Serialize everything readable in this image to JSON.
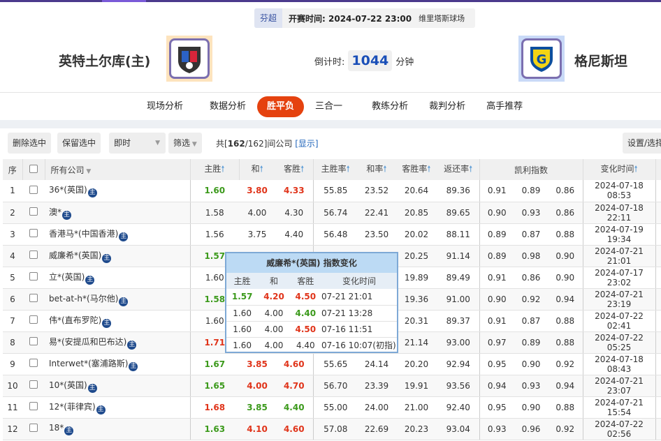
{
  "match": {
    "league": "芬超",
    "kickoff": "开赛时间: 2024-07-22 23:00",
    "venue": "维里塔斯球场",
    "home": "英特土尔库(主)",
    "away": "格尼斯坦",
    "countdown_label": "倒计时:",
    "countdown": "1044",
    "countdown_unit": "分钟"
  },
  "nav": [
    "现场分析",
    "数据分析",
    "胜平负",
    "三合一",
    "教练分析",
    "裁判分析",
    "高手推荐"
  ],
  "toolbar": {
    "delete": "删除选中",
    "keep": "保留选中",
    "mode": "即时",
    "filter": "筛选",
    "count_pre": "共[",
    "count_bold": "162",
    "count_post": "/162]间公司",
    "show": "[显示]",
    "settings": "设置/选择"
  },
  "headers": {
    "idx": "序",
    "company": "所有公司",
    "home": "主胜",
    "draw": "和",
    "away": "客胜",
    "hr": "主胜率",
    "dr": "和率",
    "ar": "客胜率",
    "ret": "返还率",
    "kelly": "凯利指数",
    "time": "变化时间"
  },
  "rows": [
    [
      "1",
      "36*(英国)",
      "1.60",
      "g",
      "3.80",
      "r",
      "4.33",
      "r",
      "55.85",
      "23.52",
      "20.64",
      "89.36",
      "0.91",
      "0.89",
      "0.86",
      "2024-07-18 08:53"
    ],
    [
      "2",
      "澳*",
      "1.58",
      "",
      "4.00",
      "",
      "4.30",
      "",
      "56.74",
      "22.41",
      "20.85",
      "89.65",
      "0.90",
      "0.93",
      "0.86",
      "2024-07-18 22:11"
    ],
    [
      "3",
      "香港马*(中国香港)",
      "1.56",
      "",
      "3.75",
      "",
      "4.40",
      "",
      "56.48",
      "23.50",
      "20.02",
      "88.11",
      "0.89",
      "0.87",
      "0.88",
      "2024-07-19 19:34"
    ],
    [
      "4",
      "威廉希*(英国)",
      "1.57",
      "g",
      "",
      "",
      "",
      "",
      "",
      "",
      "20.25",
      "91.14",
      "0.89",
      "0.98",
      "0.90",
      "2024-07-21 21:01"
    ],
    [
      "5",
      "立*(英国)",
      "1.60",
      "",
      "",
      "",
      "",
      "",
      "",
      "",
      "19.89",
      "89.49",
      "0.91",
      "0.86",
      "0.90",
      "2024-07-17 23:02"
    ],
    [
      "6",
      "bet-at-h*(马尔他)",
      "1.58",
      "g",
      "",
      "",
      "",
      "",
      "",
      "",
      "19.36",
      "91.00",
      "0.90",
      "0.92",
      "0.94",
      "2024-07-21 23:19"
    ],
    [
      "7",
      "伟*(直布罗陀)",
      "1.60",
      "",
      "",
      "",
      "",
      "",
      "",
      "",
      "20.31",
      "89.37",
      "0.91",
      "0.87",
      "0.88",
      "2024-07-22 02:41"
    ],
    [
      "8",
      "易*(安提瓜和巴布达)",
      "1.71",
      "r",
      "",
      "",
      "",
      "",
      "",
      "",
      "21.14",
      "93.00",
      "0.97",
      "0.89",
      "0.88",
      "2024-07-22 05:25"
    ],
    [
      "9",
      "Interwet*(塞浦路斯)",
      "1.67",
      "g",
      "3.85",
      "r",
      "4.60",
      "r",
      "55.65",
      "24.14",
      "20.20",
      "92.94",
      "0.95",
      "0.90",
      "0.92",
      "2024-07-18 08:43"
    ],
    [
      "10",
      "10*(英国)",
      "1.65",
      "g",
      "4.00",
      "r",
      "4.70",
      "r",
      "56.70",
      "23.39",
      "19.91",
      "93.56",
      "0.94",
      "0.93",
      "0.94",
      "2024-07-21 23:07"
    ],
    [
      "11",
      "12*(菲律宾)",
      "1.68",
      "r",
      "3.85",
      "g",
      "4.40",
      "g",
      "55.00",
      "24.00",
      "21.00",
      "92.40",
      "0.95",
      "0.90",
      "0.88",
      "2024-07-21 15:54"
    ],
    [
      "12",
      "18*",
      "1.63",
      "g",
      "4.10",
      "r",
      "4.60",
      "r",
      "57.08",
      "22.69",
      "20.23",
      "93.04",
      "0.93",
      "0.96",
      "0.92",
      "2024-07-22 02:56"
    ]
  ],
  "badge": "主",
  "popup": {
    "title": "威廉希*(英国) 指数变化",
    "headers": [
      "主胜",
      "和",
      "客胜",
      "变化时间"
    ],
    "rows": [
      [
        "1.57",
        "g",
        "4.20",
        "r",
        "4.50",
        "r",
        "07-21 21:01"
      ],
      [
        "1.60",
        "",
        "4.00",
        "",
        "4.40",
        "g",
        "07-21 13:28"
      ],
      [
        "1.60",
        "",
        "4.00",
        "",
        "4.50",
        "r",
        "07-16 11:51"
      ],
      [
        "1.60",
        "",
        "4.00",
        "",
        "4.40",
        "",
        "07-16 10:07(初指)"
      ]
    ]
  },
  "colors": {
    "up": "#3c9a1c",
    "down": "#e0341a",
    "accent": "#e5420f"
  }
}
